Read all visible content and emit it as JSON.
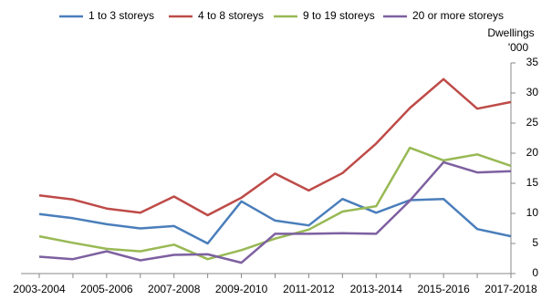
{
  "chart_data": {
    "type": "line",
    "categories": [
      "2003-2004",
      null,
      "2005-2006",
      null,
      "2007-2008",
      null,
      "2009-2010",
      null,
      "2011-2012",
      null,
      "2013-2014",
      null,
      "2015-2016",
      null,
      "2017-2018"
    ],
    "series": [
      {
        "name": "1 to 3 storeys",
        "color": "#4a7ebb",
        "values": [
          9.9,
          9.2,
          8.2,
          7.5,
          7.9,
          5.0,
          12.0,
          8.8,
          8.0,
          12.4,
          10.1,
          12.2,
          12.4,
          7.4,
          6.2
        ]
      },
      {
        "name": "4 to 8 storeys",
        "color": "#be4b48",
        "values": [
          13.0,
          12.3,
          10.8,
          10.1,
          12.8,
          9.7,
          12.6,
          16.6,
          13.8,
          16.7,
          21.6,
          27.5,
          32.3,
          27.4,
          28.5
        ]
      },
      {
        "name": "9 to 19 storeys",
        "color": "#98b954",
        "values": [
          6.2,
          5.1,
          4.1,
          3.7,
          4.8,
          2.4,
          3.9,
          5.8,
          7.3,
          10.3,
          11.2,
          20.9,
          18.8,
          19.8,
          17.9
        ]
      },
      {
        "name": "20 or more storeys",
        "color": "#7d60a0",
        "values": [
          2.8,
          2.4,
          3.7,
          2.2,
          3.1,
          3.2,
          1.8,
          6.6,
          6.6,
          6.7,
          6.6,
          12.1,
          18.5,
          16.8,
          17.0
        ]
      }
    ],
    "y_label_lines": [
      "Dwellings",
      "'000"
    ],
    "ylim": [
      0,
      35
    ],
    "yticks": [
      0,
      5,
      10,
      15,
      20,
      25,
      30,
      35
    ],
    "y_axis_side": "right",
    "grid": false
  }
}
